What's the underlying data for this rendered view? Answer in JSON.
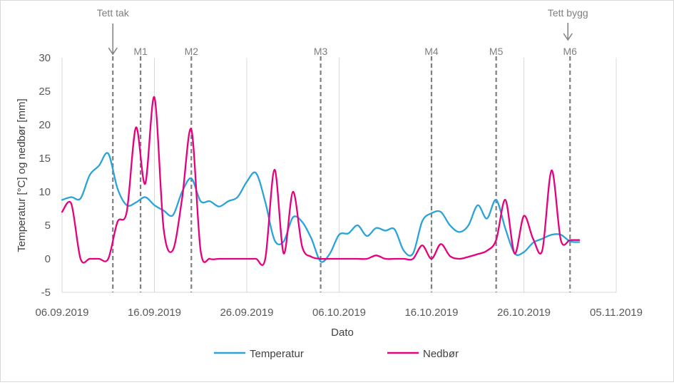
{
  "chart_data": {
    "type": "line",
    "title": "",
    "xlabel": "Dato",
    "ylabel": "Temperatur [°C] og nedbør [mm]",
    "x_start": "2019-09-06",
    "x_range_days": [
      0,
      60
    ],
    "ylim": [
      -5,
      30
    ],
    "y_ticks": [
      -5,
      0,
      5,
      10,
      15,
      20,
      25,
      30
    ],
    "x_ticks": [
      {
        "day": 0,
        "label": "06.09.2019"
      },
      {
        "day": 10,
        "label": "16.09.2019"
      },
      {
        "day": 20,
        "label": "26.09.2019"
      },
      {
        "day": 30,
        "label": "06.10.2019"
      },
      {
        "day": 40,
        "label": "16.10.2019"
      },
      {
        "day": 50,
        "label": "26.10.2019"
      },
      {
        "day": 60,
        "label": "05.11.2019"
      }
    ],
    "grid": {
      "vertical": true,
      "horizontal": false
    },
    "legend_position": "bottom",
    "series": [
      {
        "name": "Temperatur",
        "color": "#29a3d9",
        "x": [
          0,
          1,
          2,
          3,
          4,
          5,
          6,
          7,
          8,
          9,
          10,
          11,
          12,
          13,
          14,
          15,
          16,
          17,
          18,
          19,
          20,
          21,
          22,
          23,
          24,
          25,
          26,
          27,
          28,
          29,
          30,
          31,
          32,
          33,
          34,
          35,
          36,
          37,
          38,
          39,
          40,
          41,
          42,
          43,
          44,
          45,
          46,
          47,
          48,
          49,
          50,
          51,
          52,
          53,
          54,
          55,
          56
        ],
        "values": [
          8.8,
          9.2,
          9,
          12.5,
          13.9,
          15.7,
          10.5,
          8,
          8.4,
          9.2,
          8,
          7.2,
          6.5,
          10,
          12,
          8.6,
          8.6,
          7.8,
          8.6,
          9.2,
          11.5,
          12.8,
          8.5,
          2.8,
          2.6,
          6.2,
          5.5,
          3,
          -0.4,
          0.8,
          3.6,
          3.8,
          5,
          3.4,
          4.6,
          4.2,
          4.4,
          1.2,
          0.8,
          5.6,
          6.8,
          7,
          5,
          4,
          5,
          8,
          6,
          8.8,
          4.5,
          0.8,
          1,
          2.4,
          3,
          3.6,
          3.6,
          2.6,
          2.5
        ]
      },
      {
        "name": "Nedbør",
        "color": "#e6007e",
        "x": [
          0,
          1,
          2,
          3,
          4,
          5,
          6,
          7,
          8,
          9,
          10,
          11,
          12,
          13,
          14,
          15,
          16,
          17,
          18,
          19,
          20,
          21,
          22,
          23,
          24,
          25,
          26,
          27,
          28,
          29,
          30,
          31,
          32,
          33,
          34,
          35,
          36,
          37,
          38,
          39,
          40,
          41,
          42,
          43,
          44,
          45,
          46,
          47,
          48,
          49,
          50,
          51,
          52,
          53,
          54,
          55,
          56
        ],
        "values": [
          7,
          8.2,
          0,
          0,
          0,
          0,
          5.5,
          7,
          19.6,
          11.2,
          24.1,
          4.5,
          1.3,
          9,
          19.3,
          1.2,
          0,
          0,
          0,
          0,
          0,
          0,
          0,
          13.3,
          0.8,
          10,
          1.8,
          0.3,
          0,
          0,
          0,
          0,
          0,
          0,
          0.5,
          0,
          0,
          0,
          0,
          2,
          0,
          2.2,
          0.4,
          0,
          0.3,
          0.7,
          1.2,
          2.8,
          8.8,
          0.8,
          6.4,
          3,
          1.3,
          13.2,
          2.8,
          2.8,
          2.8
        ]
      }
    ],
    "markers": [
      {
        "day": 5.5,
        "label": "Tett tak",
        "arrow": true
      },
      {
        "day": 8.5,
        "label": "M1",
        "arrow": false
      },
      {
        "day": 14,
        "label": "M2",
        "arrow": false
      },
      {
        "day": 28,
        "label": "M3",
        "arrow": false
      },
      {
        "day": 40,
        "label": "M4",
        "arrow": false
      },
      {
        "day": 47,
        "label": "M5",
        "arrow": false
      },
      {
        "day": 55,
        "label": "M6",
        "arrow": false
      },
      {
        "day": 55,
        "label": "Tett bygg",
        "arrow": true,
        "label_only": true
      }
    ]
  },
  "colors": {
    "grid": "#d9d9d9",
    "axis": "#d9d9d9",
    "marker_line": "#7f7f7f",
    "marker_text": "#7f7f7f"
  }
}
